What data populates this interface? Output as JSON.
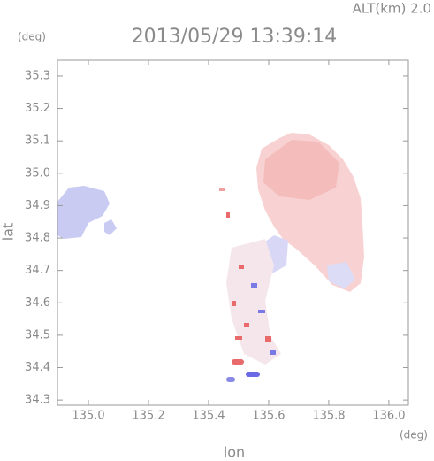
{
  "chart_data": {
    "type": "map",
    "title": "2013/05/29 13:39:14",
    "subtitle": "ALT(km) 2.0",
    "x_label": "lon",
    "y_label": "lat",
    "x_unit": "(deg)",
    "y_unit": "(deg)",
    "xlim": [
      134.897,
      136.065
    ],
    "ylim": [
      34.284,
      35.349
    ],
    "xticks": [
      {
        "value": 135,
        "label": "135.0"
      },
      135.2,
      135.4,
      135.6,
      135.8,
      {
        "value": 136,
        "label": "136.0"
      }
    ],
    "yticks": [
      34.3,
      34.4,
      34.5,
      34.6,
      34.7,
      34.8,
      34.9,
      {
        "value": 35,
        "label": "35.0"
      },
      35.1,
      35.2,
      35.3
    ]
  }
}
